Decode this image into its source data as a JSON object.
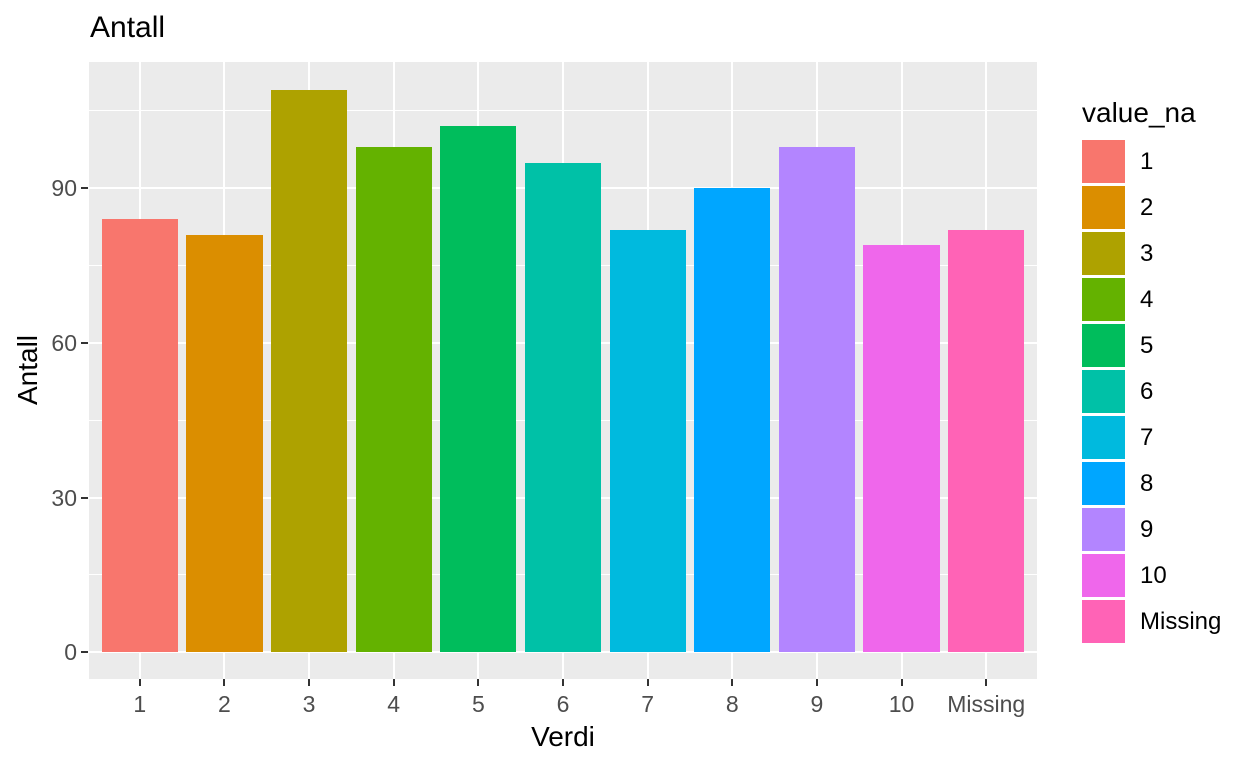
{
  "chart_data": {
    "type": "bar",
    "title": "Antall",
    "xlabel": "Verdi",
    "ylabel": "Antall",
    "categories": [
      "1",
      "2",
      "3",
      "4",
      "5",
      "6",
      "7",
      "8",
      "9",
      "10",
      "Missing"
    ],
    "values": [
      84,
      81,
      109,
      98,
      102,
      95,
      82,
      90,
      98,
      79,
      82
    ],
    "bar_colors": [
      "#F8766D",
      "#DB8E00",
      "#AEA200",
      "#64B200",
      "#00BD5C",
      "#00C1A7",
      "#00BADE",
      "#00A6FF",
      "#B385FF",
      "#EF67EB",
      "#FF63B6"
    ],
    "y_ticks": [
      0,
      30,
      60,
      90
    ],
    "y_minor_ticks": [
      15,
      45,
      75,
      105
    ],
    "ylim": [
      -5.2,
      114.5
    ],
    "bar_rel_width": 0.9,
    "grid": true,
    "panel_background": "#EBEBEB",
    "grid_color": "#FFFFFF",
    "tick_mark_color": "#333333",
    "tick_label_color": "#4D4D4D",
    "legend": {
      "title": "value_na",
      "position": "right",
      "entries": [
        {
          "label": "1",
          "color": "#F8766D"
        },
        {
          "label": "2",
          "color": "#DB8E00"
        },
        {
          "label": "3",
          "color": "#AEA200"
        },
        {
          "label": "4",
          "color": "#64B200"
        },
        {
          "label": "5",
          "color": "#00BD5C"
        },
        {
          "label": "6",
          "color": "#00C1A7"
        },
        {
          "label": "7",
          "color": "#00BADE"
        },
        {
          "label": "8",
          "color": "#00A6FF"
        },
        {
          "label": "9",
          "color": "#B385FF"
        },
        {
          "label": "10",
          "color": "#EF67EB"
        },
        {
          "label": "Missing",
          "color": "#FF63B6"
        }
      ]
    }
  }
}
